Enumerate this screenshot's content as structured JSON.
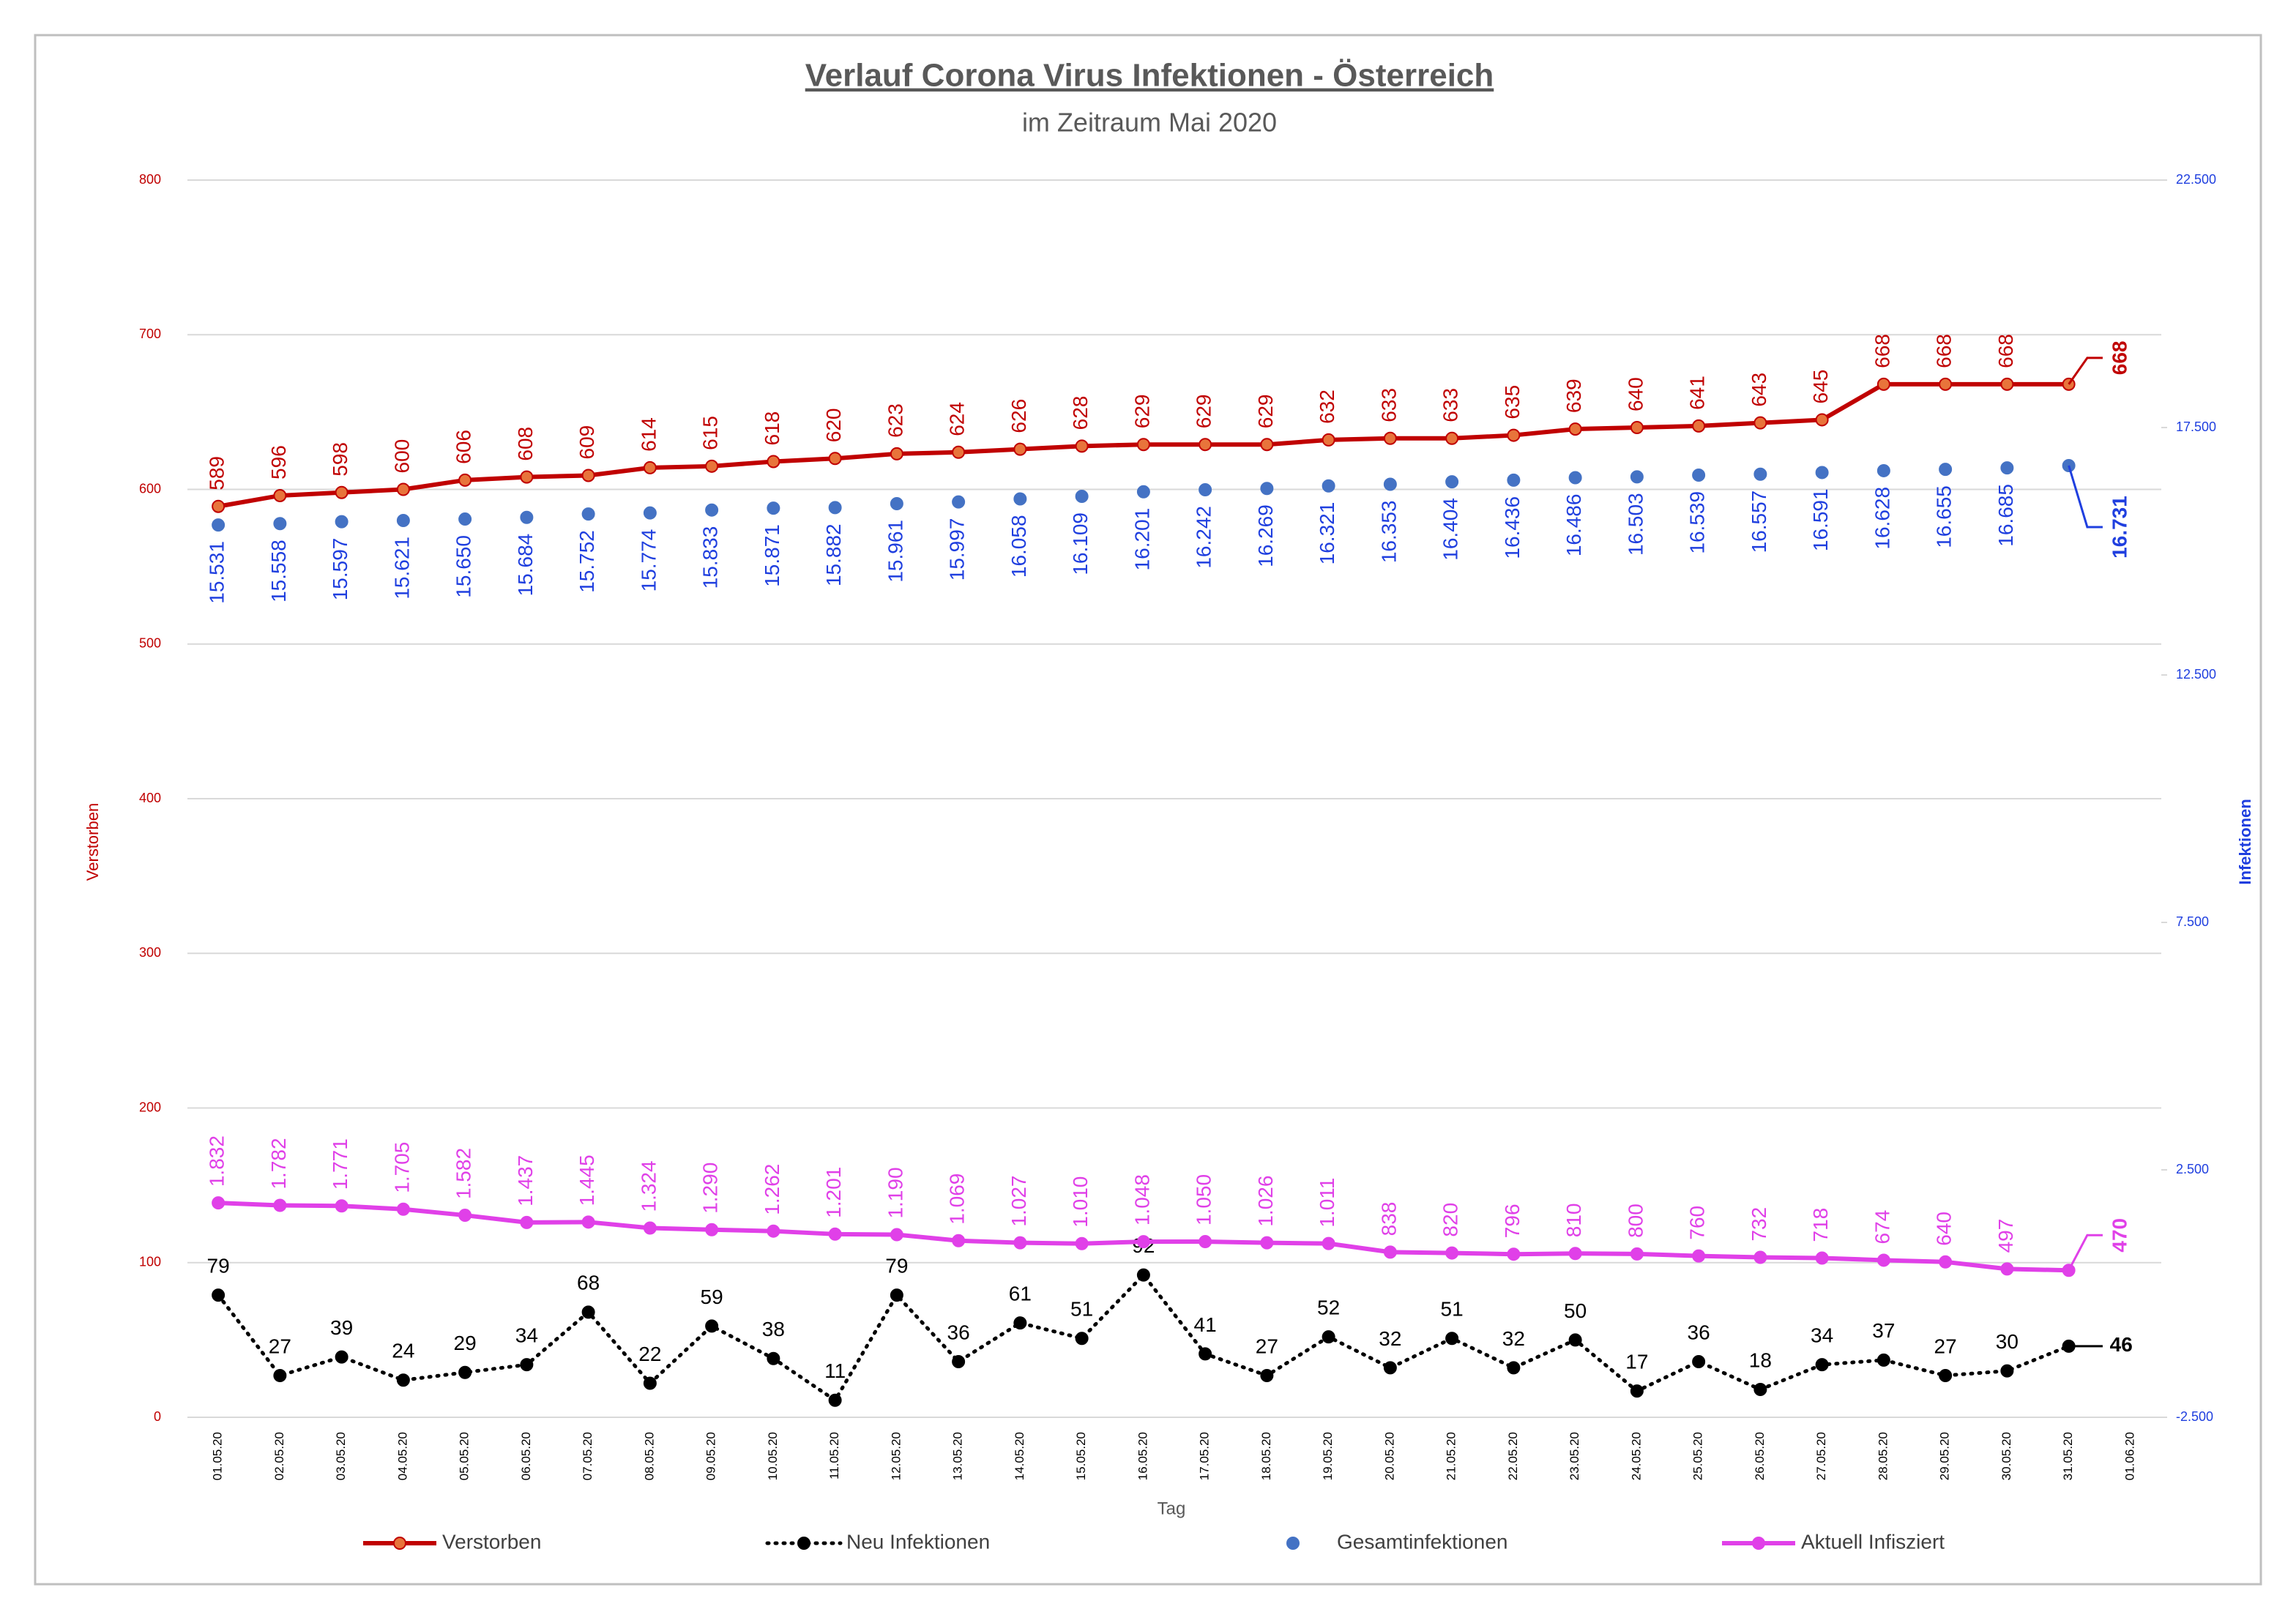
{
  "chart_data": {
    "type": "line",
    "title": "Verlauf Corona Virus Infektionen - Österreich",
    "subtitle": "im Zeitraum Mai 2020",
    "x_label": "Tag",
    "y_label": "Verstorben",
    "y2_label": "Infektionen",
    "categories": [
      "01.05.20",
      "02.05.20",
      "03.05.20",
      "04.05.20",
      "05.05.20",
      "06.05.20",
      "07.05.20",
      "08.05.20",
      "09.05.20",
      "10.05.20",
      "11.05.20",
      "12.05.20",
      "13.05.20",
      "14.05.20",
      "15.05.20",
      "16.05.20",
      "17.05.20",
      "18.05.20",
      "19.05.20",
      "20.05.20",
      "21.05.20",
      "22.05.20",
      "23.05.20",
      "24.05.20",
      "25.05.20",
      "26.05.20",
      "27.05.20",
      "28.05.20",
      "29.05.20",
      "30.05.20",
      "31.05.20",
      "01.06.20"
    ],
    "ylim": [
      0,
      800
    ],
    "yticks": [
      0,
      100,
      200,
      300,
      400,
      500,
      600,
      700,
      800
    ],
    "y2lim": [
      -2500,
      22500
    ],
    "y2ticks": [
      {
        "value": -2500,
        "label": "-2.500"
      },
      {
        "value": 2500,
        "label": "2.500"
      },
      {
        "value": 7500,
        "label": "7.500"
      },
      {
        "value": 12500,
        "label": "12.500"
      },
      {
        "value": 17500,
        "label": "17.500"
      },
      {
        "value": 22500,
        "label": "22.500"
      }
    ],
    "grid": true,
    "legend": "bottom",
    "series": [
      {
        "name": "Verstorben",
        "color": "#c00000",
        "line": "solid",
        "values": [
          589,
          596,
          598,
          600,
          606,
          608,
          609,
          614,
          615,
          618,
          620,
          623,
          624,
          626,
          628,
          629,
          629,
          629,
          632,
          633,
          633,
          635,
          639,
          640,
          641,
          643,
          645,
          668,
          668,
          668,
          668,
          null
        ]
      },
      {
        "name": "Neu Infektionen",
        "color": "#000000",
        "line": "dotted",
        "values": [
          79,
          27,
          39,
          24,
          29,
          34,
          68,
          22,
          59,
          38,
          11,
          79,
          36,
          61,
          51,
          92,
          41,
          27,
          52,
          32,
          51,
          32,
          50,
          17,
          36,
          18,
          34,
          37,
          27,
          30,
          46,
          null
        ]
      },
      {
        "name": "Gesamtinfektionen",
        "color": "#4472c4",
        "line": "none",
        "axis": "y2",
        "values": [
          15531,
          15558,
          15597,
          15621,
          15650,
          15684,
          15752,
          15774,
          15833,
          15871,
          15882,
          15961,
          15997,
          16058,
          16109,
          16201,
          16242,
          16269,
          16321,
          16353,
          16404,
          16436,
          16486,
          16503,
          16539,
          16557,
          16591,
          16628,
          16655,
          16685,
          16731,
          null
        ],
        "value_labels": [
          "15.531",
          "15.558",
          "15.597",
          "15.621",
          "15.650",
          "15.684",
          "15.752",
          "15.774",
          "15.833",
          "15.871",
          "15.882",
          "15.961",
          "15.997",
          "16.058",
          "16.109",
          "16.201",
          "16.242",
          "16.269",
          "16.321",
          "16.353",
          "16.404",
          "16.436",
          "16.486",
          "16.503",
          "16.539",
          "16.557",
          "16.591",
          "16.628",
          "16.655",
          "16.685",
          "16.731",
          null
        ]
      },
      {
        "name": "Aktuell Infisziert",
        "color": "#e040e8",
        "line": "solid",
        "axis": "y2",
        "values": [
          1832,
          1782,
          1771,
          1705,
          1582,
          1437,
          1445,
          1324,
          1290,
          1262,
          1201,
          1190,
          1069,
          1027,
          1010,
          1048,
          1050,
          1026,
          1011,
          838,
          820,
          796,
          810,
          800,
          760,
          732,
          718,
          674,
          640,
          497,
          470,
          null
        ],
        "value_labels": [
          "1.832",
          "1.782",
          "1.771",
          "1.705",
          "1.582",
          "1.437",
          "1.445",
          "1.324",
          "1.290",
          "1.262",
          "1.201",
          "1.190",
          "1.069",
          "1.027",
          "1.010",
          "1.048",
          "1.050",
          "1.026",
          "1.011",
          "838",
          "820",
          "796",
          "810",
          "800",
          "760",
          "732",
          "718",
          "674",
          "640",
          "497",
          "470",
          null
        ]
      }
    ]
  }
}
